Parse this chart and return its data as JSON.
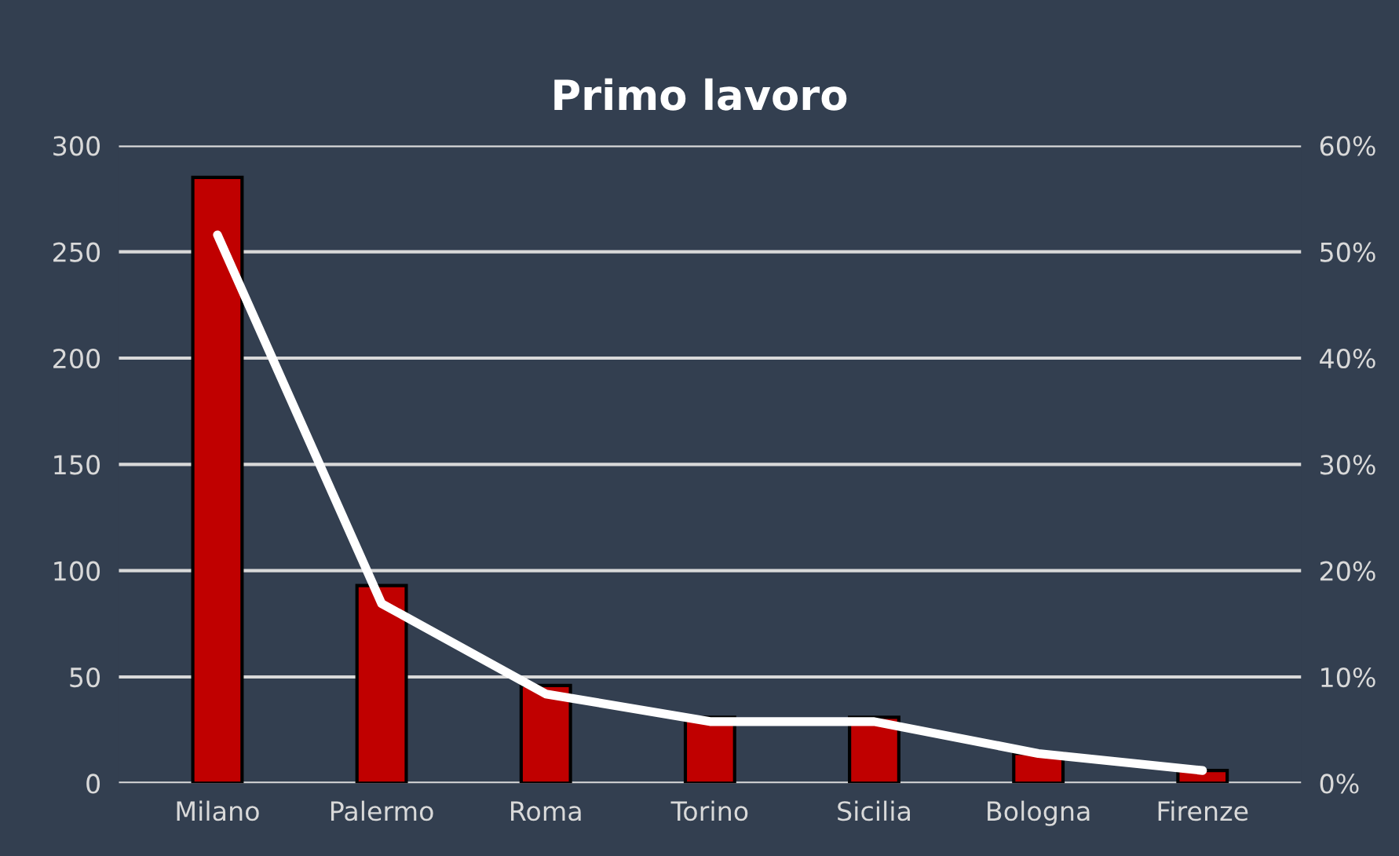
{
  "chart_data": {
    "type": "bar",
    "title": "Primo lavoro",
    "categories": [
      "Milano",
      "Palermo",
      "Roma",
      "Torino",
      "Sicilia",
      "Bologna",
      "Firenze"
    ],
    "series": [
      {
        "color": "#c00000",
        "values": [
          285,
          93,
          46,
          31,
          31,
          14,
          6
        ]
      },
      {
        "type": "line",
        "axis": "y2",
        "color": "#ffffff",
        "values": [
          51.6,
          16.9,
          8.4,
          5.8,
          5.8,
          2.8,
          1.2
        ]
      }
    ],
    "ylim": [
      0,
      300
    ],
    "yticks": [
      0,
      50,
      100,
      150,
      200,
      250,
      300
    ],
    "y2lim": [
      0,
      60
    ],
    "y2ticks": [
      {
        "value": 0,
        "label": "0%"
      },
      {
        "value": 10,
        "label": "10%"
      },
      {
        "value": 20,
        "label": "20%"
      },
      {
        "value": 30,
        "label": "30%"
      },
      {
        "value": 40,
        "label": "40%"
      },
      {
        "value": 50,
        "label": "50%"
      },
      {
        "value": 60,
        "label": "60%"
      }
    ],
    "grid": "y",
    "marker": "none"
  }
}
